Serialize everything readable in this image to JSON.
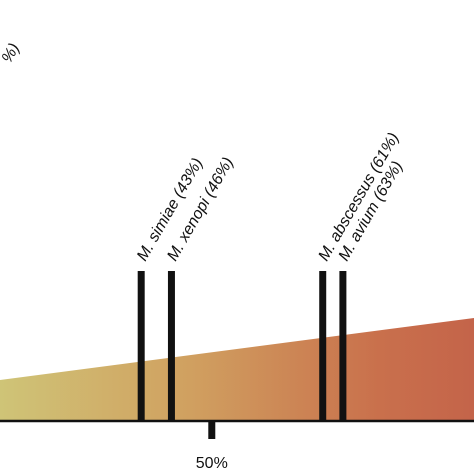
{
  "chart_data": {
    "type": "bar",
    "xlim": [
      29,
      76
    ],
    "x_ticks": [
      {
        "value": 50,
        "label": "50%"
      }
    ],
    "markers": [
      {
        "label": "M. simiae (43%)",
        "value": 43
      },
      {
        "label": "M. xenopi (46%)",
        "value": 46
      },
      {
        "label": "M. abscessus (61%)",
        "value": 61
      },
      {
        "label": "M. avium (63%)",
        "value": 63
      }
    ],
    "cropped_label": {
      "label": "%)"
    },
    "gradient_colors": [
      "#cfc477",
      "#d0a060",
      "#c9704c",
      "#c4644a"
    ]
  }
}
